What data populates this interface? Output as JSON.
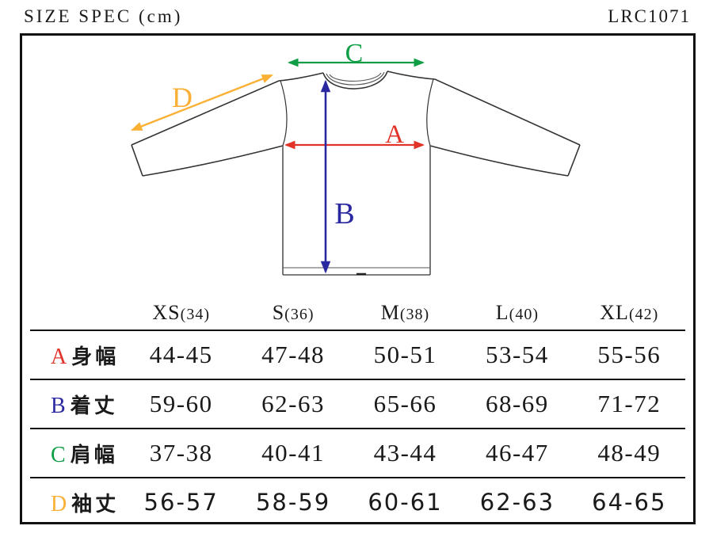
{
  "page": {
    "title": "SIZE SPEC (cm)",
    "product_code": "LRC1071",
    "unit": "cm"
  },
  "colors": {
    "A": "#e13328",
    "B": "#2a28a0",
    "C": "#0f9e46",
    "D": "#f9b034",
    "ink": "#1a1a1a",
    "line": "#111111",
    "outline": "#333333"
  },
  "diagram": {
    "garment": "long-sleeve-tshirt",
    "labels": {
      "A": "A",
      "B": "B",
      "C": "C",
      "D": "D"
    }
  },
  "table": {
    "columns": [
      {
        "label": "XS",
        "sub": "(34)"
      },
      {
        "label": "S",
        "sub": "(36)"
      },
      {
        "label": "M",
        "sub": "(38)"
      },
      {
        "label": "L",
        "sub": "(40)"
      },
      {
        "label": "XL",
        "sub": "(42)"
      }
    ],
    "rows": [
      {
        "key": "A",
        "name": "身幅",
        "values": [
          "44-45",
          "47-48",
          "50-51",
          "53-54",
          "55-56"
        ]
      },
      {
        "key": "B",
        "name": "着丈",
        "values": [
          "59-60",
          "62-63",
          "65-66",
          "68-69",
          "71-72"
        ]
      },
      {
        "key": "C",
        "name": "肩幅",
        "values": [
          "37-38",
          "40-41",
          "43-44",
          "46-47",
          "48-49"
        ]
      },
      {
        "key": "D",
        "name": "袖丈",
        "values": [
          "56-57",
          "58-59",
          "60-61",
          "62-63",
          "64-65"
        ]
      }
    ]
  }
}
